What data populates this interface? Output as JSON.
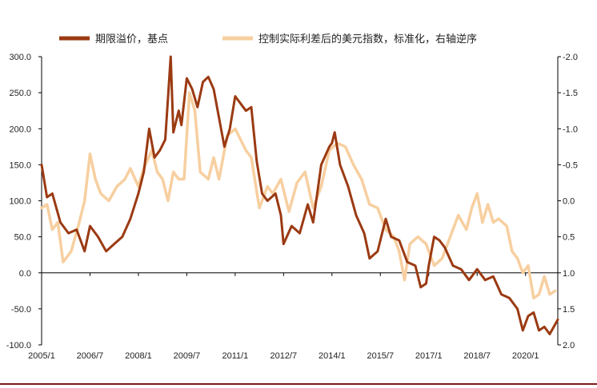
{
  "chart_data": {
    "type": "line",
    "title": "",
    "xlabel": "",
    "ylabel_left": "",
    "ylabel_right": "",
    "x_ticks": [
      "2005/1",
      "2006/7",
      "2008/1",
      "2009/7",
      "2011/1",
      "2012/7",
      "2014/1",
      "2015/7",
      "2017/1",
      "2018/7",
      "2020/1"
    ],
    "x_range": [
      "2005/1",
      "2021/1"
    ],
    "y_left": {
      "range": [
        -100,
        300
      ],
      "ticks": [
        "300.0",
        "250.0",
        "200.0",
        "150.0",
        "100.0",
        "50.0",
        "0.0",
        "-50.0",
        "-100.0"
      ]
    },
    "y_right": {
      "range": [
        -2.0,
        2.0
      ],
      "inverted": true,
      "ticks": [
        "-2.0",
        "-1.5",
        "-1.0",
        "-0.5",
        "0.0",
        "0.5",
        "1.0",
        "1.5",
        "2.0"
      ]
    },
    "legend_position": "top",
    "grid": false,
    "series": [
      {
        "name": "期限溢价，基点",
        "axis": "left",
        "color": "#9b3a12",
        "points": [
          [
            "2005/1",
            150
          ],
          [
            "2005/3",
            105
          ],
          [
            "2005/5",
            110
          ],
          [
            "2005/8",
            70
          ],
          [
            "2005/11",
            55
          ],
          [
            "2006/2",
            60
          ],
          [
            "2006/4",
            40
          ],
          [
            "2006/5",
            30
          ],
          [
            "2006/7",
            65
          ],
          [
            "2006/10",
            50
          ],
          [
            "2007/1",
            30
          ],
          [
            "2007/4",
            40
          ],
          [
            "2007/7",
            50
          ],
          [
            "2007/10",
            75
          ],
          [
            "2008/1",
            110
          ],
          [
            "2008/3",
            140
          ],
          [
            "2008/5",
            200
          ],
          [
            "2008/7",
            160
          ],
          [
            "2008/9",
            170
          ],
          [
            "2008/11",
            185
          ],
          [
            "2009/1",
            300
          ],
          [
            "2009/2",
            195
          ],
          [
            "2009/4",
            225
          ],
          [
            "2009/5",
            205
          ],
          [
            "2009/7",
            270
          ],
          [
            "2009/9",
            255
          ],
          [
            "2009/11",
            230
          ],
          [
            "2010/1",
            265
          ],
          [
            "2010/3",
            272
          ],
          [
            "2010/5",
            255
          ],
          [
            "2010/7",
            215
          ],
          [
            "2010/9",
            175
          ],
          [
            "2010/11",
            200
          ],
          [
            "2011/1",
            245
          ],
          [
            "2011/3",
            235
          ],
          [
            "2011/5",
            225
          ],
          [
            "2011/7",
            230
          ],
          [
            "2011/9",
            155
          ],
          [
            "2011/11",
            110
          ],
          [
            "2012/1",
            100
          ],
          [
            "2012/4",
            110
          ],
          [
            "2012/6",
            80
          ],
          [
            "2012/7",
            40
          ],
          [
            "2012/10",
            65
          ],
          [
            "2013/1",
            55
          ],
          [
            "2013/4",
            95
          ],
          [
            "2013/6",
            70
          ],
          [
            "2013/9",
            150
          ],
          [
            "2013/12",
            175
          ],
          [
            "2014/1",
            180
          ],
          [
            "2014/2",
            195
          ],
          [
            "2014/4",
            150
          ],
          [
            "2014/7",
            120
          ],
          [
            "2014/10",
            80
          ],
          [
            "2015/1",
            55
          ],
          [
            "2015/3",
            20
          ],
          [
            "2015/6",
            30
          ],
          [
            "2015/9",
            75
          ],
          [
            "2015/11",
            50
          ],
          [
            "2016/2",
            45
          ],
          [
            "2016/5",
            15
          ],
          [
            "2016/8",
            10
          ],
          [
            "2016/10",
            -20
          ],
          [
            "2016/12",
            -15
          ],
          [
            "2017/1",
            10
          ],
          [
            "2017/3",
            50
          ],
          [
            "2017/5",
            45
          ],
          [
            "2017/7",
            35
          ],
          [
            "2017/10",
            10
          ],
          [
            "2018/1",
            5
          ],
          [
            "2018/4",
            -10
          ],
          [
            "2018/7",
            5
          ],
          [
            "2018/10",
            -10
          ],
          [
            "2019/1",
            -5
          ],
          [
            "2019/4",
            -30
          ],
          [
            "2019/7",
            -35
          ],
          [
            "2019/10",
            -50
          ],
          [
            "2019/12",
            -80
          ],
          [
            "2020/2",
            -60
          ],
          [
            "2020/4",
            -55
          ],
          [
            "2020/6",
            -80
          ],
          [
            "2020/8",
            -75
          ],
          [
            "2020/10",
            -85
          ],
          [
            "2021/1",
            -65
          ]
        ]
      },
      {
        "name": "控制实际利差后的美元指数，标准化，右轴逆序",
        "axis": "right",
        "color": "#f7cfa0",
        "points": [
          [
            "2005/1",
            0.1
          ],
          [
            "2005/3",
            0.05
          ],
          [
            "2005/5",
            0.4
          ],
          [
            "2005/7",
            0.3
          ],
          [
            "2005/9",
            0.85
          ],
          [
            "2005/12",
            0.7
          ],
          [
            "2006/3",
            0.3
          ],
          [
            "2006/5",
            0.0
          ],
          [
            "2006/7",
            -0.65
          ],
          [
            "2006/9",
            -0.3
          ],
          [
            "2006/11",
            -0.1
          ],
          [
            "2007/2",
            0.0
          ],
          [
            "2007/5",
            -0.2
          ],
          [
            "2007/8",
            -0.3
          ],
          [
            "2007/10",
            -0.45
          ],
          [
            "2008/1",
            -0.2
          ],
          [
            "2008/3",
            -0.45
          ],
          [
            "2008/6",
            -0.7
          ],
          [
            "2008/8",
            -0.4
          ],
          [
            "2008/10",
            -0.3
          ],
          [
            "2008/12",
            0.0
          ],
          [
            "2009/2",
            -0.4
          ],
          [
            "2009/4",
            -0.3
          ],
          [
            "2009/6",
            -0.3
          ],
          [
            "2009/8",
            -1.5
          ],
          [
            "2009/10",
            -1.25
          ],
          [
            "2009/12",
            -0.4
          ],
          [
            "2010/3",
            -0.3
          ],
          [
            "2010/5",
            -0.6
          ],
          [
            "2010/7",
            -0.3
          ],
          [
            "2010/10",
            -0.9
          ],
          [
            "2011/1",
            -1.0
          ],
          [
            "2011/3",
            -0.85
          ],
          [
            "2011/5",
            -0.7
          ],
          [
            "2011/7",
            -0.6
          ],
          [
            "2011/10",
            0.1
          ],
          [
            "2012/1",
            -0.2
          ],
          [
            "2012/3",
            -0.1
          ],
          [
            "2012/6",
            -0.3
          ],
          [
            "2012/9",
            0.15
          ],
          [
            "2012/12",
            -0.25
          ],
          [
            "2013/3",
            -0.4
          ],
          [
            "2013/6",
            0.1
          ],
          [
            "2013/9",
            -0.2
          ],
          [
            "2013/12",
            -0.7
          ],
          [
            "2014/3",
            -0.8
          ],
          [
            "2014/6",
            -0.75
          ],
          [
            "2014/9",
            -0.5
          ],
          [
            "2014/12",
            -0.3
          ],
          [
            "2015/3",
            0.05
          ],
          [
            "2015/6",
            0.1
          ],
          [
            "2015/9",
            0.4
          ],
          [
            "2015/12",
            0.5
          ],
          [
            "2016/2",
            0.7
          ],
          [
            "2016/4",
            1.1
          ],
          [
            "2016/6",
            0.6
          ],
          [
            "2016/9",
            0.5
          ],
          [
            "2016/12",
            0.6
          ],
          [
            "2017/3",
            0.9
          ],
          [
            "2017/6",
            0.8
          ],
          [
            "2017/9",
            0.5
          ],
          [
            "2017/12",
            0.2
          ],
          [
            "2018/3",
            0.4
          ],
          [
            "2018/5",
            0.1
          ],
          [
            "2018/7",
            -0.1
          ],
          [
            "2018/9",
            0.3
          ],
          [
            "2018/11",
            0.05
          ],
          [
            "2019/1",
            0.3
          ],
          [
            "2019/3",
            0.25
          ],
          [
            "2019/6",
            0.35
          ],
          [
            "2019/8",
            0.7
          ],
          [
            "2019/10",
            0.8
          ],
          [
            "2019/12",
            1.0
          ],
          [
            "2020/2",
            0.9
          ],
          [
            "2020/4",
            1.35
          ],
          [
            "2020/6",
            1.3
          ],
          [
            "2020/8",
            1.05
          ],
          [
            "2020/10",
            1.3
          ],
          [
            "2020/12",
            1.25
          ]
        ]
      }
    ]
  }
}
